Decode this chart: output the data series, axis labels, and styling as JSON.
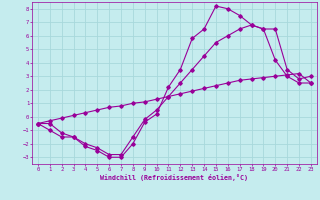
{
  "xlabel": "Windchill (Refroidissement éolien,°C)",
  "bg_color": "#c5ecee",
  "grid_color": "#a8d8dc",
  "line_color": "#990099",
  "xlim": [
    -0.5,
    23.5
  ],
  "ylim": [
    -3.5,
    8.5
  ],
  "xticks": [
    0,
    1,
    2,
    3,
    4,
    5,
    6,
    7,
    8,
    9,
    10,
    11,
    12,
    13,
    14,
    15,
    16,
    17,
    18,
    19,
    20,
    21,
    22,
    23
  ],
  "yticks": [
    -3,
    -2,
    -1,
    0,
    1,
    2,
    3,
    4,
    5,
    6,
    7,
    8
  ],
  "c1_x": [
    0,
    1,
    2,
    3,
    4,
    5,
    6,
    7,
    8,
    9,
    10,
    11,
    12,
    13,
    14,
    15,
    16,
    17,
    18,
    19,
    20,
    21,
    22,
    23
  ],
  "c1_y": [
    -0.5,
    -0.3,
    -0.1,
    0.1,
    0.3,
    0.5,
    0.7,
    0.8,
    1.0,
    1.1,
    1.3,
    1.5,
    1.7,
    1.9,
    2.1,
    2.3,
    2.5,
    2.7,
    2.8,
    2.9,
    3.0,
    3.1,
    3.2,
    2.5
  ],
  "c2_x": [
    0,
    1,
    2,
    3,
    4,
    5,
    6,
    7,
    8,
    9,
    10,
    11,
    12,
    13,
    14,
    15,
    16,
    17,
    18,
    19,
    20,
    21,
    22,
    23
  ],
  "c2_y": [
    -0.5,
    -1.0,
    -1.5,
    -1.5,
    -2.2,
    -2.5,
    -3.0,
    -3.0,
    -2.0,
    -0.4,
    0.2,
    2.2,
    3.5,
    5.8,
    6.5,
    8.2,
    8.0,
    7.5,
    6.8,
    6.5,
    4.2,
    3.0,
    2.5,
    2.5
  ],
  "c3_x": [
    0,
    1,
    2,
    3,
    4,
    5,
    6,
    7,
    8,
    9,
    10,
    11,
    12,
    13,
    14,
    15,
    16,
    17,
    18,
    19,
    20,
    21,
    22,
    23
  ],
  "c3_y": [
    -0.5,
    -0.5,
    -1.2,
    -1.5,
    -2.0,
    -2.3,
    -2.8,
    -2.8,
    -1.5,
    -0.2,
    0.5,
    1.5,
    2.5,
    3.5,
    4.5,
    5.5,
    6.0,
    6.5,
    6.8,
    6.5,
    6.5,
    3.5,
    2.8,
    3.0
  ]
}
